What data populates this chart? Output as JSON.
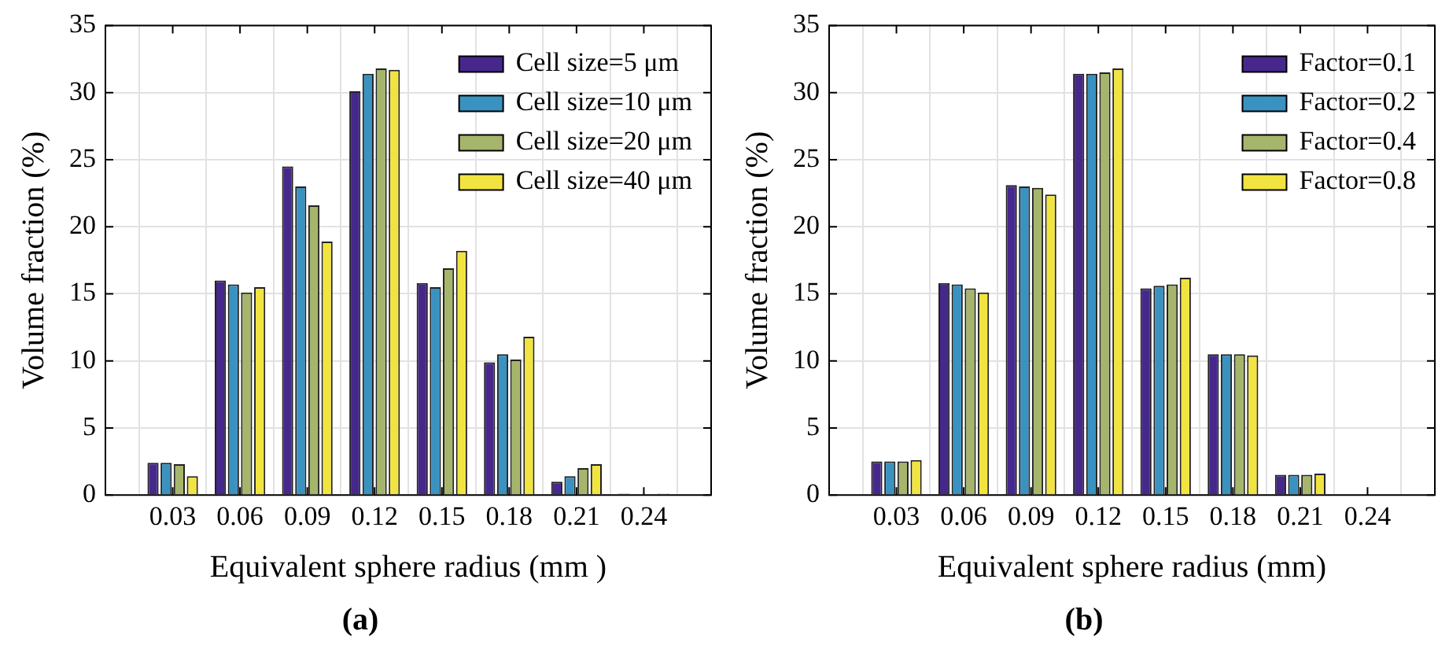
{
  "chart_data": [
    {
      "type": "bar",
      "title": "(a)",
      "xlabel": "Equivalent sphere radius (mm )",
      "ylabel": "Volume fraction (%)",
      "x": [
        0.03,
        0.06,
        0.09,
        0.12,
        0.15,
        0.18,
        0.21,
        0.24
      ],
      "xlim": [
        0,
        0.27
      ],
      "xticks": [
        0.03,
        0.06,
        0.09,
        0.12,
        0.15,
        0.18,
        0.21,
        0.24
      ],
      "ylim": [
        0,
        35
      ],
      "yticks": [
        0,
        5,
        10,
        15,
        20,
        25,
        30,
        35
      ],
      "grid": true,
      "legend": "top right",
      "series": [
        {
          "name": "Cell size=5 μm",
          "color": "#46288c",
          "values": [
            2.4,
            16.0,
            24.5,
            30.1,
            15.8,
            9.9,
            1.0,
            0.1
          ]
        },
        {
          "name": "Cell size=10 μm",
          "color": "#3a92c0",
          "values": [
            2.4,
            15.7,
            23.0,
            31.4,
            15.5,
            10.5,
            1.4,
            0
          ]
        },
        {
          "name": "Cell size=20 μm",
          "color": "#a5b56c",
          "values": [
            2.3,
            15.1,
            21.6,
            31.8,
            16.9,
            10.1,
            2.0,
            0
          ]
        },
        {
          "name": "Cell size=40 μm",
          "color": "#f2e440",
          "values": [
            1.4,
            15.5,
            18.9,
            31.7,
            18.2,
            11.8,
            2.3,
            0.1
          ]
        }
      ]
    },
    {
      "type": "bar",
      "title": "(b)",
      "xlabel": "Equivalent sphere radius (mm)",
      "ylabel": "Volume fraction (%)",
      "x": [
        0.03,
        0.06,
        0.09,
        0.12,
        0.15,
        0.18,
        0.21,
        0.24
      ],
      "xlim": [
        0,
        0.27
      ],
      "xticks": [
        0.03,
        0.06,
        0.09,
        0.12,
        0.15,
        0.18,
        0.21,
        0.24
      ],
      "ylim": [
        0,
        35
      ],
      "yticks": [
        0,
        5,
        10,
        15,
        20,
        25,
        30,
        35
      ],
      "grid": true,
      "legend": "top right",
      "series": [
        {
          "name": "Factor=0.1",
          "color": "#46288c",
          "values": [
            2.5,
            15.8,
            23.1,
            31.4,
            15.4,
            10.5,
            1.5,
            0
          ]
        },
        {
          "name": "Factor=0.2",
          "color": "#3a92c0",
          "values": [
            2.5,
            15.7,
            23.0,
            31.4,
            15.6,
            10.5,
            1.5,
            0
          ]
        },
        {
          "name": "Factor=0.4",
          "color": "#a5b56c",
          "values": [
            2.5,
            15.4,
            22.9,
            31.5,
            15.7,
            10.5,
            1.5,
            0
          ]
        },
        {
          "name": "Factor=0.8",
          "color": "#f2e440",
          "values": [
            2.6,
            15.1,
            22.4,
            31.8,
            16.2,
            10.4,
            1.6,
            0
          ]
        }
      ]
    }
  ]
}
